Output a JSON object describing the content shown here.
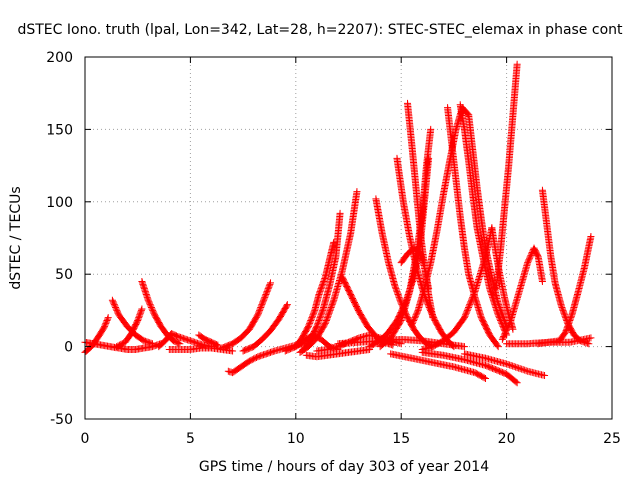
{
  "chart_data": {
    "type": "scatter",
    "title": "dSTEC Iono. truth (lpal, Lon=342, Lat=28, h=2207): STEC-STEC_elemax in phase cont",
    "xlabel": "GPS time / hours of day 303 of year 2014",
    "ylabel": "dSTEC  / TECUs",
    "xlim": [
      0,
      25
    ],
    "ylim": [
      -50,
      200
    ],
    "xticks": [
      0,
      5,
      10,
      15,
      20,
      25
    ],
    "yticks": [
      -50,
      0,
      50,
      100,
      150,
      200
    ],
    "xtick_labels": [
      "0",
      "5",
      "10",
      "15",
      "20",
      "25"
    ],
    "ytick_labels": [
      "-50",
      "0",
      "50",
      "100",
      "150",
      "200"
    ],
    "grid": true,
    "marker": "+",
    "color": "#ff0000",
    "series": [
      {
        "x": [
          0.0,
          0.4,
          0.8,
          1.2,
          1.6,
          2.0,
          2.4,
          2.8,
          3.2,
          3.6
        ],
        "y": [
          3,
          2,
          1,
          0,
          -1,
          -2,
          -2,
          -1,
          0,
          2
        ]
      },
      {
        "x": [
          0.0,
          0.3,
          0.6,
          0.9,
          1.1
        ],
        "y": [
          -4,
          0,
          6,
          13,
          20
        ]
      },
      {
        "x": [
          1.3,
          1.6,
          2.0,
          2.4,
          2.8,
          3.2
        ],
        "y": [
          32,
          22,
          14,
          8,
          4,
          2
        ]
      },
      {
        "x": [
          1.5,
          1.9,
          2.2,
          2.5,
          2.7
        ],
        "y": [
          0,
          3,
          9,
          18,
          26
        ]
      },
      {
        "x": [
          2.7,
          3.0,
          3.3,
          3.6,
          3.9,
          4.2,
          4.5
        ],
        "y": [
          45,
          32,
          22,
          14,
          8,
          4,
          2
        ]
      },
      {
        "x": [
          3.5,
          3.8,
          4.1,
          4.4,
          4.8,
          5.2,
          5.6,
          6.0
        ],
        "y": [
          0,
          4,
          9,
          7,
          5,
          3,
          1,
          0
        ]
      },
      {
        "x": [
          4.0,
          4.5,
          5.0,
          5.5,
          6.0,
          6.5,
          7.0
        ],
        "y": [
          -2,
          -2,
          -2,
          -1,
          -1,
          -2,
          -3
        ]
      },
      {
        "x": [
          5.4,
          5.7,
          6.0,
          6.3
        ],
        "y": [
          8,
          5,
          3,
          1
        ]
      },
      {
        "x": [
          6.8,
          7.0,
          7.4,
          7.8,
          8.2,
          8.6,
          9.0,
          9.5,
          10.0,
          10.4
        ],
        "y": [
          -17,
          -18,
          -14,
          -10,
          -7,
          -5,
          -3,
          -1,
          1,
          2
        ]
      },
      {
        "x": [
          6.5,
          7.0,
          7.4,
          7.8,
          8.2,
          8.5,
          8.8
        ],
        "y": [
          -1,
          2,
          6,
          12,
          22,
          33,
          44
        ]
      },
      {
        "x": [
          7.5,
          8.0,
          8.4,
          8.8,
          9.2,
          9.6
        ],
        "y": [
          -3,
          0,
          5,
          11,
          19,
          29
        ]
      },
      {
        "x": [
          9.5,
          10.0,
          10.4,
          10.8,
          11.2,
          11.6,
          12.0
        ],
        "y": [
          -3,
          0,
          4,
          8,
          5,
          0,
          -2
        ]
      },
      {
        "x": [
          10.0,
          10.3,
          10.6,
          10.9,
          11.1,
          11.4,
          11.6,
          11.8
        ],
        "y": [
          0,
          6,
          14,
          25,
          36,
          48,
          60,
          72
        ]
      },
      {
        "x": [
          10.4,
          10.7,
          11.0,
          11.3,
          11.6,
          11.9,
          12.1
        ],
        "y": [
          -2,
          5,
          14,
          26,
          42,
          62,
          92
        ]
      },
      {
        "x": [
          10.2,
          10.6,
          11.0,
          11.4,
          11.8,
          12.2,
          12.6,
          12.9
        ],
        "y": [
          -4,
          0,
          6,
          16,
          32,
          52,
          78,
          107
        ]
      },
      {
        "x": [
          10.5,
          11.0,
          11.5,
          12.0,
          12.5,
          13.0,
          13.5
        ],
        "y": [
          -6,
          -7,
          -6,
          -5,
          -4,
          -3,
          -2
        ]
      },
      {
        "x": [
          11.0,
          11.5,
          12.0,
          12.5,
          13.0,
          13.5,
          14.0,
          14.5,
          15.0
        ],
        "y": [
          -3,
          -2,
          0,
          3,
          6,
          8,
          6,
          4,
          2
        ]
      },
      {
        "x": [
          12.2,
          12.6,
          13.0,
          13.4,
          13.8,
          14.2,
          14.6
        ],
        "y": [
          48,
          36,
          24,
          14,
          7,
          3,
          1
        ]
      },
      {
        "x": [
          13.8,
          14.1,
          14.4,
          14.7,
          15.0,
          15.3,
          15.6,
          15.9,
          16.2,
          16.5
        ],
        "y": [
          102,
          78,
          58,
          42,
          30,
          20,
          12,
          6,
          2,
          0
        ]
      },
      {
        "x": [
          13.5,
          14.0,
          14.4,
          14.8,
          15.2,
          15.6,
          15.9,
          16.1,
          16.3
        ],
        "y": [
          0,
          4,
          10,
          18,
          30,
          48,
          70,
          100,
          130
        ]
      },
      {
        "x": [
          14.8,
          15.1,
          15.4,
          15.7,
          16.0,
          16.3,
          16.6,
          16.9,
          17.2,
          17.5
        ],
        "y": [
          130,
          100,
          76,
          56,
          40,
          28,
          18,
          10,
          4,
          0
        ]
      },
      {
        "x": [
          14.0,
          14.5,
          15.0,
          15.4,
          15.7,
          16.0,
          16.2,
          16.4
        ],
        "y": [
          0,
          6,
          18,
          38,
          62,
          92,
          125,
          150
        ]
      },
      {
        "x": [
          15.3,
          15.5,
          15.7,
          15.9,
          16.1,
          16.3,
          16.5
        ],
        "y": [
          168,
          140,
          110,
          80,
          56,
          36,
          20
        ]
      },
      {
        "x": [
          15.0,
          15.3,
          15.6,
          15.9,
          16.1,
          16.3
        ],
        "y": [
          58,
          64,
          68,
          65,
          55,
          40
        ]
      },
      {
        "x": [
          15.5,
          15.8,
          16.1,
          16.4,
          16.7,
          17.0,
          17.3,
          17.6,
          17.9,
          18.2
        ],
        "y": [
          15,
          25,
          40,
          58,
          80,
          105,
          128,
          150,
          165,
          160
        ]
      },
      {
        "x": [
          17.2,
          17.4,
          17.6,
          17.8,
          18.0,
          18.2,
          18.5,
          18.8,
          19.2,
          19.6
        ],
        "y": [
          165,
          140,
          115,
          90,
          68,
          50,
          34,
          20,
          8,
          0
        ]
      },
      {
        "x": [
          17.8,
          18.0,
          18.2,
          18.4,
          18.6,
          18.9,
          19.2,
          19.6,
          20.0
        ],
        "y": [
          167,
          150,
          128,
          104,
          82,
          60,
          40,
          22,
          8
        ]
      },
      {
        "x": [
          18.2,
          18.4,
          18.6,
          18.8,
          19.0,
          19.3,
          19.6,
          20.0
        ],
        "y": [
          160,
          135,
          110,
          88,
          68,
          48,
          30,
          14
        ]
      },
      {
        "x": [
          16.0,
          16.5,
          17.0,
          17.5,
          18.0,
          18.5,
          19.0,
          19.3
        ],
        "y": [
          -2,
          0,
          4,
          10,
          20,
          38,
          62,
          82
        ]
      },
      {
        "x": [
          19.3,
          19.5,
          19.7,
          19.9,
          20.1,
          20.3
        ],
        "y": [
          82,
          64,
          48,
          34,
          22,
          12
        ]
      },
      {
        "x": [
          19.5,
          19.7,
          19.9,
          20.1,
          20.3,
          20.5
        ],
        "y": [
          40,
          65,
          95,
          125,
          160,
          195
        ]
      },
      {
        "x": [
          19.8,
          20.2,
          20.6,
          21.0,
          21.3,
          21.5,
          21.7
        ],
        "y": [
          5,
          18,
          38,
          58,
          68,
          62,
          45
        ]
      },
      {
        "x": [
          21.7,
          21.9,
          22.1,
          22.3,
          22.6,
          22.9,
          23.2,
          23.5,
          23.9
        ],
        "y": [
          108,
          85,
          62,
          44,
          28,
          16,
          8,
          4,
          2
        ]
      },
      {
        "x": [
          21.5,
          22.0,
          22.5,
          22.8,
          23.1,
          23.4,
          23.7,
          24.0
        ],
        "y": [
          2,
          3,
          4,
          10,
          22,
          38,
          55,
          76
        ]
      },
      {
        "x": [
          14.5,
          15.5,
          16.5,
          17.5,
          18.5,
          19.0
        ],
        "y": [
          -5,
          -8,
          -11,
          -14,
          -18,
          -22
        ]
      },
      {
        "x": [
          16.0,
          17.0,
          18.0,
          19.0,
          20.0,
          20.5
        ],
        "y": [
          -4,
          -6,
          -9,
          -13,
          -19,
          -25
        ]
      },
      {
        "x": [
          18.0,
          19.0,
          20.0,
          21.0,
          21.8
        ],
        "y": [
          -5,
          -8,
          -12,
          -17,
          -20
        ]
      },
      {
        "x": [
          12.0,
          13.0,
          14.0,
          15.0,
          16.0,
          17.0,
          18.0
        ],
        "y": [
          2,
          3,
          4,
          5,
          4,
          2,
          0
        ]
      },
      {
        "x": [
          20.0,
          21.0,
          22.0,
          23.0,
          24.0
        ],
        "y": [
          2,
          2,
          3,
          3,
          6
        ]
      }
    ]
  }
}
